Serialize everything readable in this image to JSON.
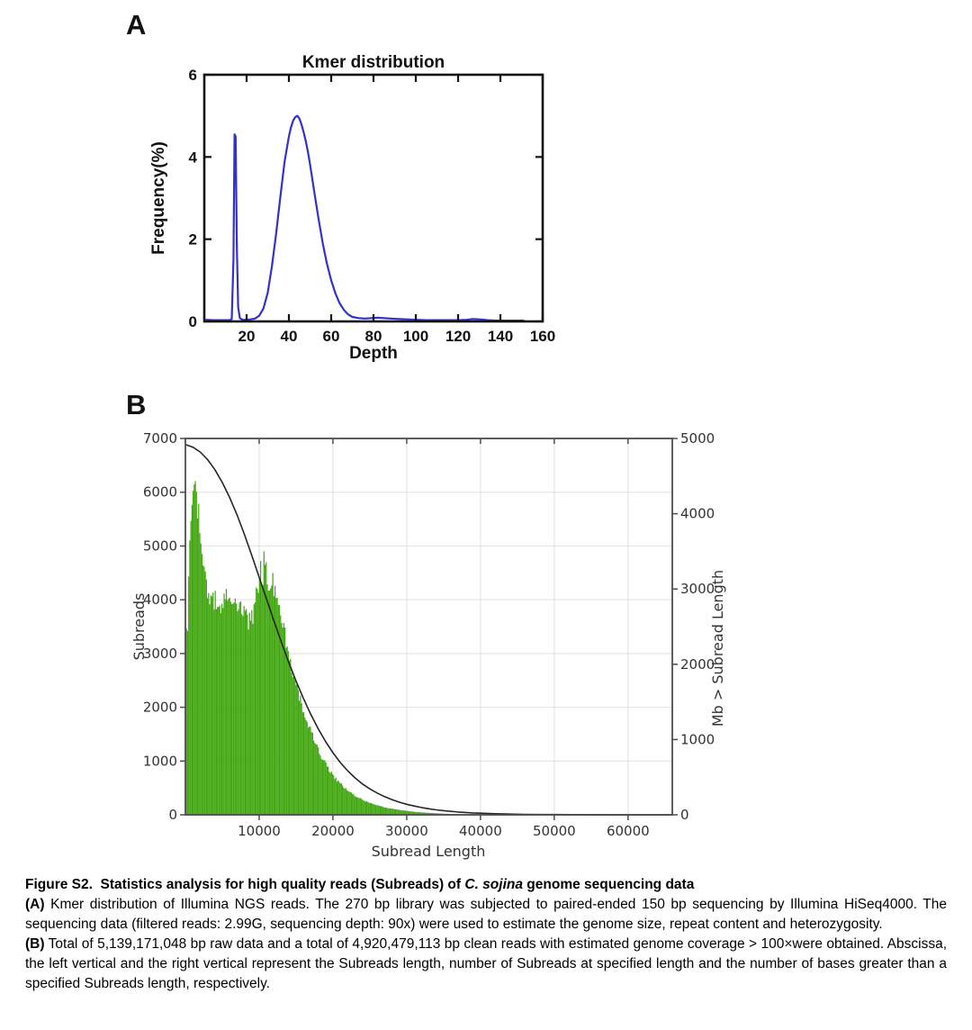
{
  "figure": {
    "panel_a_label": "A",
    "panel_b_label": "B"
  },
  "caption": {
    "title_prefix": "Figure S2.  Statistics analysis for high quality reads (Subreads) of ",
    "title_italic": "C. sojina",
    "title_suffix": " genome sequencing data",
    "para_a_label": "(A)",
    "para_a_text": " Kmer distribution of Illumina NGS reads. The 270 bp library was subjected to paired-ended 150 bp sequencing by Illumina HiSeq4000. The sequencing data (filtered reads: 2.99G, sequencing depth: 90x) were used to estimate the genome size, repeat content and heterozygosity.",
    "para_b_label": "(B)",
    "para_b_text": " Total of 5,139,171,048 bp raw data and a total of 4,920,479,113 bp clean reads with estimated genome coverage > 100×were obtained. Abscissa, the left vertical and  the right vertical represent the Subreads length, number of Subreads at specified length and the number of bases greater than a specified Subreads length, respectively."
  },
  "chart_data": [
    {
      "id": "kmer-distribution",
      "type": "line",
      "title": "Kmer distribution",
      "xlabel": "Depth",
      "ylabel": "Frequency(%)",
      "xlim": [
        0,
        160
      ],
      "ylim": [
        0,
        6
      ],
      "xticks": [
        20,
        40,
        60,
        80,
        100,
        120,
        140,
        160
      ],
      "yticks": [
        0,
        2,
        4,
        6
      ],
      "grid": false,
      "legend": "none",
      "line_color": "#3232c8",
      "frame_color": "#111111",
      "points": [
        [
          1,
          0.04
        ],
        [
          4,
          0.03
        ],
        [
          8,
          0.03
        ],
        [
          12,
          0.03
        ],
        [
          13,
          0.06
        ],
        [
          13.8,
          1.5
        ],
        [
          14.3,
          4.55
        ],
        [
          14.8,
          4.5
        ],
        [
          15.4,
          1.8
        ],
        [
          16,
          0.35
        ],
        [
          16.8,
          0.08
        ],
        [
          18,
          0.04
        ],
        [
          20,
          0.04
        ],
        [
          22,
          0.05
        ],
        [
          24,
          0.07
        ],
        [
          26,
          0.14
        ],
        [
          28,
          0.32
        ],
        [
          30,
          0.7
        ],
        [
          32,
          1.35
        ],
        [
          34,
          2.15
        ],
        [
          36,
          3.05
        ],
        [
          38,
          3.9
        ],
        [
          40,
          4.5
        ],
        [
          41,
          4.72
        ],
        [
          42,
          4.88
        ],
        [
          43,
          4.97
        ],
        [
          44,
          5.0
        ],
        [
          45,
          4.93
        ],
        [
          46,
          4.78
        ],
        [
          47,
          4.6
        ],
        [
          48,
          4.38
        ],
        [
          49,
          4.12
        ],
        [
          50,
          3.82
        ],
        [
          52,
          3.15
        ],
        [
          54,
          2.5
        ],
        [
          56,
          1.9
        ],
        [
          58,
          1.4
        ],
        [
          60,
          1.0
        ],
        [
          62,
          0.68
        ],
        [
          64,
          0.44
        ],
        [
          66,
          0.28
        ],
        [
          68,
          0.17
        ],
        [
          70,
          0.11
        ],
        [
          73,
          0.08
        ],
        [
          76,
          0.07
        ],
        [
          79,
          0.08
        ],
        [
          82,
          0.09
        ],
        [
          85,
          0.08
        ],
        [
          88,
          0.07
        ],
        [
          92,
          0.06
        ],
        [
          96,
          0.05
        ],
        [
          100,
          0.04
        ],
        [
          105,
          0.03
        ],
        [
          110,
          0.03
        ],
        [
          115,
          0.03
        ],
        [
          120,
          0.03
        ],
        [
          124,
          0.04
        ],
        [
          127,
          0.06
        ],
        [
          130,
          0.05
        ],
        [
          134,
          0.03
        ],
        [
          138,
          0.02
        ],
        [
          142,
          0.02
        ],
        [
          146,
          0.02
        ],
        [
          150,
          0.02
        ],
        [
          151,
          0.02
        ]
      ]
    },
    {
      "id": "subread-length-distribution",
      "type": "bar+line",
      "title": "",
      "xlabel": "Subread Length",
      "ylabel_left": "Subreads",
      "ylabel_right": "Mb > Subread Length",
      "xlim": [
        0,
        66000
      ],
      "ylim_left": [
        0,
        7000
      ],
      "ylim_right": [
        0,
        5000
      ],
      "xticks": [
        10000,
        20000,
        30000,
        40000,
        50000,
        60000
      ],
      "yticks_left": [
        0,
        1000,
        2000,
        3000,
        4000,
        5000,
        6000,
        7000
      ],
      "yticks_right": [
        0,
        1000,
        2000,
        3000,
        4000,
        5000
      ],
      "grid": true,
      "bar_color": "#43a712",
      "curve_color": "#262626",
      "frame_color": "#4d4d4d",
      "grid_color": "#e0e0e0",
      "text_color": "#333333",
      "bin_width": 150,
      "histogram_envelope": [
        [
          250,
          3300
        ],
        [
          400,
          4100
        ],
        [
          600,
          5000
        ],
        [
          800,
          5700
        ],
        [
          1000,
          6150
        ],
        [
          1200,
          6350
        ],
        [
          1400,
          6200
        ],
        [
          1600,
          5900
        ],
        [
          1800,
          5550
        ],
        [
          2000,
          5200
        ],
        [
          2200,
          4900
        ],
        [
          2400,
          4650
        ],
        [
          2600,
          4420
        ],
        [
          2800,
          4280
        ],
        [
          3000,
          4150
        ],
        [
          3300,
          4020
        ],
        [
          3600,
          3960
        ],
        [
          4000,
          3990
        ],
        [
          4400,
          3990
        ],
        [
          4800,
          3930
        ],
        [
          5200,
          3970
        ],
        [
          5600,
          4010
        ],
        [
          6000,
          3950
        ],
        [
          6400,
          3900
        ],
        [
          6800,
          3910
        ],
        [
          7200,
          3860
        ],
        [
          7600,
          3790
        ],
        [
          8000,
          3700
        ],
        [
          8400,
          3620
        ],
        [
          8800,
          3600
        ],
        [
          9100,
          3650
        ],
        [
          9400,
          3780
        ],
        [
          9700,
          3990
        ],
        [
          10000,
          4300
        ],
        [
          10200,
          4520
        ],
        [
          10400,
          4650
        ],
        [
          10600,
          4620
        ],
        [
          10800,
          4560
        ],
        [
          11100,
          4480
        ],
        [
          11400,
          4420
        ],
        [
          11700,
          4340
        ],
        [
          12000,
          4200
        ],
        [
          12300,
          4060
        ],
        [
          12600,
          3900
        ],
        [
          12900,
          3720
        ],
        [
          13200,
          3530
        ],
        [
          13500,
          3340
        ],
        [
          13800,
          3150
        ],
        [
          14100,
          2960
        ],
        [
          14400,
          2780
        ],
        [
          14700,
          2600
        ],
        [
          15000,
          2430
        ],
        [
          15400,
          2220
        ],
        [
          15800,
          2030
        ],
        [
          16200,
          1860
        ],
        [
          16600,
          1700
        ],
        [
          17000,
          1550
        ],
        [
          17400,
          1410
        ],
        [
          17800,
          1280
        ],
        [
          18200,
          1160
        ],
        [
          18600,
          1050
        ],
        [
          19000,
          950
        ],
        [
          19400,
          860
        ],
        [
          19800,
          780
        ],
        [
          20200,
          700
        ],
        [
          20700,
          620
        ],
        [
          21200,
          550
        ],
        [
          21700,
          490
        ],
        [
          22200,
          435
        ],
        [
          22700,
          385
        ],
        [
          23200,
          340
        ],
        [
          23800,
          295
        ],
        [
          24400,
          258
        ],
        [
          25000,
          225
        ],
        [
          25600,
          196
        ],
        [
          26200,
          171
        ],
        [
          26800,
          149
        ],
        [
          27400,
          130
        ],
        [
          28000,
          113
        ],
        [
          28600,
          99
        ],
        [
          29200,
          87
        ],
        [
          29800,
          76
        ],
        [
          30500,
          64
        ],
        [
          31200,
          54
        ],
        [
          32000,
          45
        ],
        [
          32800,
          37
        ],
        [
          33600,
          31
        ],
        [
          34400,
          25
        ],
        [
          35200,
          21
        ],
        [
          36000,
          17
        ],
        [
          37000,
          13
        ],
        [
          38000,
          10
        ],
        [
          39000,
          8
        ],
        [
          40000,
          6
        ],
        [
          41500,
          4
        ],
        [
          43000,
          3
        ],
        [
          44500,
          2
        ],
        [
          46000,
          1
        ],
        [
          48000,
          1
        ],
        [
          50000,
          0
        ]
      ],
      "cumulative_mb_curve": [
        [
          0,
          4920
        ],
        [
          1000,
          4885
        ],
        [
          2000,
          4820
        ],
        [
          3000,
          4720
        ],
        [
          4000,
          4585
        ],
        [
          5000,
          4415
        ],
        [
          6000,
          4215
        ],
        [
          7000,
          3985
        ],
        [
          8000,
          3725
        ],
        [
          9000,
          3445
        ],
        [
          10000,
          3155
        ],
        [
          11000,
          2865
        ],
        [
          12000,
          2575
        ],
        [
          13000,
          2295
        ],
        [
          14000,
          2025
        ],
        [
          15000,
          1775
        ],
        [
          16000,
          1545
        ],
        [
          17000,
          1335
        ],
        [
          18000,
          1145
        ],
        [
          19000,
          975
        ],
        [
          20000,
          825
        ],
        [
          21000,
          695
        ],
        [
          22000,
          585
        ],
        [
          23000,
          490
        ],
        [
          24000,
          410
        ],
        [
          25000,
          345
        ],
        [
          26000,
          290
        ],
        [
          27000,
          242
        ],
        [
          28000,
          202
        ],
        [
          29000,
          168
        ],
        [
          30000,
          140
        ],
        [
          31000,
          117
        ],
        [
          32000,
          97
        ],
        [
          33000,
          80
        ],
        [
          34000,
          66
        ],
        [
          35000,
          55
        ],
        [
          36000,
          45
        ],
        [
          37000,
          37
        ],
        [
          38000,
          31
        ],
        [
          39000,
          25
        ],
        [
          40000,
          21
        ],
        [
          42000,
          14
        ],
        [
          44000,
          9
        ],
        [
          46000,
          6
        ],
        [
          48000,
          4
        ],
        [
          50000,
          3
        ],
        [
          53000,
          2
        ],
        [
          56000,
          1
        ],
        [
          60000,
          0
        ],
        [
          66000,
          0
        ]
      ]
    }
  ]
}
